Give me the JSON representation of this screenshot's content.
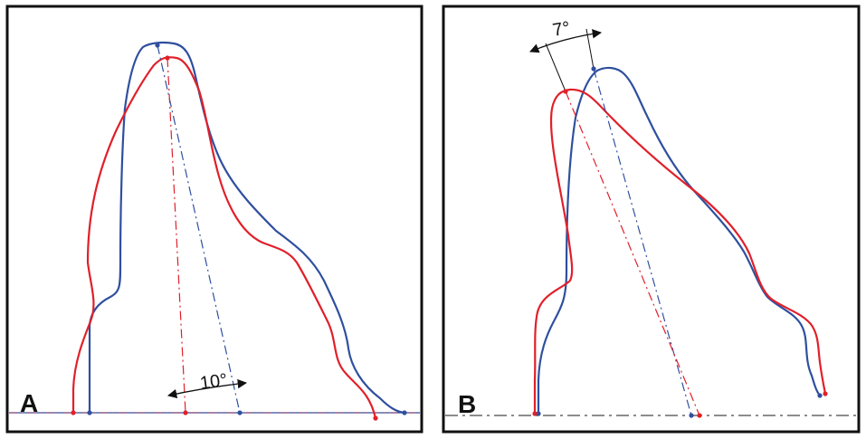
{
  "colors": {
    "blue": "#2f4f9f",
    "red": "#e0202a",
    "frame": "#111111",
    "baseline_b": "#666666"
  },
  "panel_a": {
    "letter": "A",
    "angle_label": "10°"
  },
  "panel_b": {
    "letter": "B",
    "angle_label": "7°"
  }
}
